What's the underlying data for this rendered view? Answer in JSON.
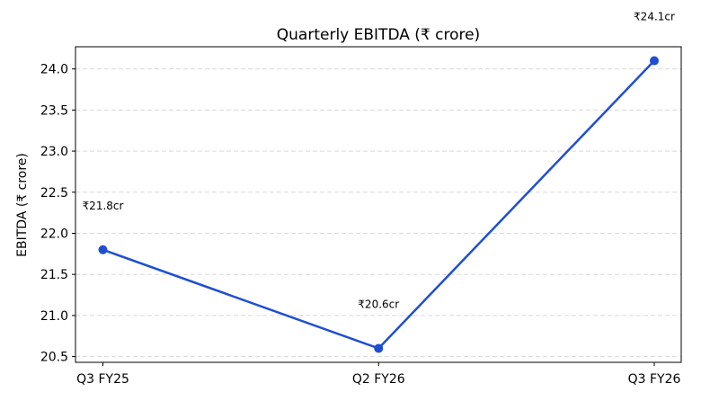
{
  "chart_data": {
    "type": "line",
    "title": "Quarterly EBITDA (₹ crore)",
    "xlabel": "",
    "ylabel": "EBITDA (₹ crore)",
    "categories": [
      "Q3 FY25",
      "Q2 FY26",
      "Q3 FY26"
    ],
    "series": [
      {
        "values": [
          21.8,
          20.6,
          24.1
        ],
        "labels": [
          "₹21.8cr",
          "₹20.6cr",
          "₹24.1cr"
        ],
        "color": "#1f4fd1"
      }
    ],
    "ylim": [
      20.43,
      24.27
    ],
    "yticks": [
      20.5,
      21.0,
      21.5,
      22.0,
      22.5,
      23.0,
      23.5,
      24.0
    ],
    "ytick_labels": [
      "20.5",
      "21.0",
      "21.5",
      "22.0",
      "22.5",
      "23.0",
      "23.5",
      "24.0"
    ],
    "grid": true,
    "grid_axis": "y",
    "marker": "circle"
  }
}
